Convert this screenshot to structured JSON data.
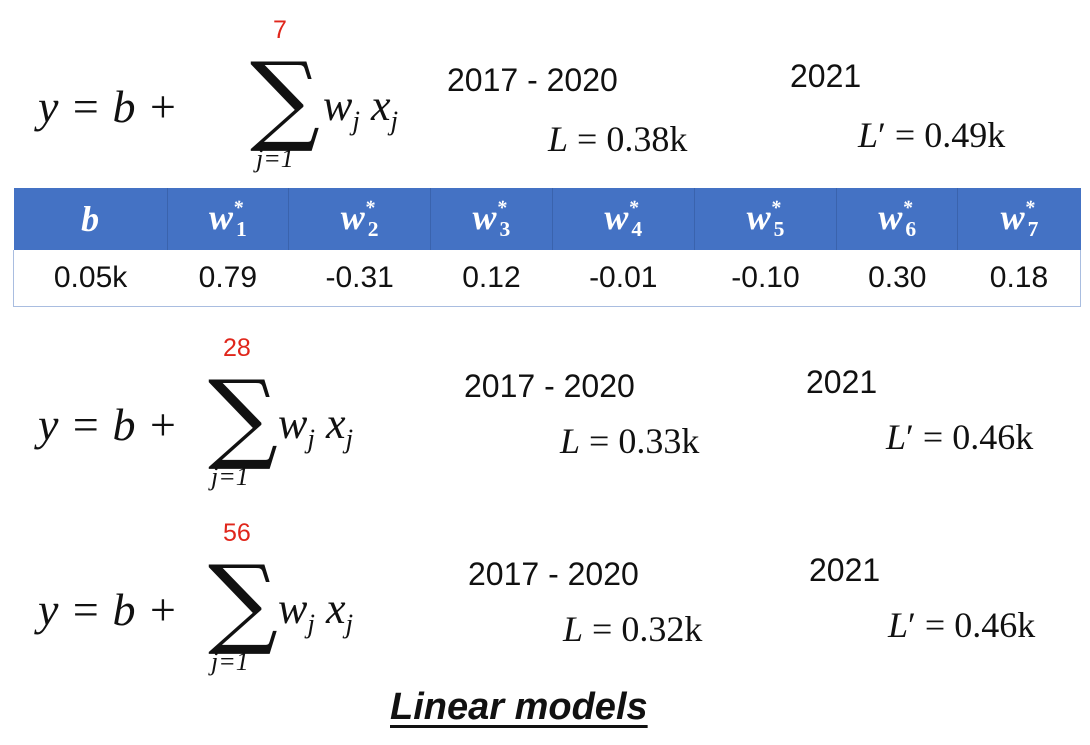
{
  "formula": {
    "lhs": "y = b + ",
    "sigma": "∑",
    "lower_index": "j=1",
    "term_w": "w",
    "term_x": " x",
    "sub_j": "j"
  },
  "models": [
    {
      "upper": "7",
      "years_train": "2017 - 2020",
      "loss_train": "0.38k",
      "year_test": "2021",
      "loss_test": "0.49k"
    },
    {
      "upper": "28",
      "years_train": "2017 - 2020",
      "loss_train": "0.33k",
      "year_test": "2021",
      "loss_test": "0.46k"
    },
    {
      "upper": "56",
      "years_train": "2017 - 2020",
      "loss_train": "0.32k",
      "year_test": "2021",
      "loss_test": "0.46k"
    }
  ],
  "loss_labels": {
    "train": "L",
    "test": "L",
    "prime": "′",
    "eq": " = "
  },
  "table": {
    "headers": [
      {
        "base": "b",
        "sup": "",
        "sub": ""
      },
      {
        "base": "w",
        "sup": "*",
        "sub": "1"
      },
      {
        "base": "w",
        "sup": "*",
        "sub": "2"
      },
      {
        "base": "w",
        "sup": "*",
        "sub": "3"
      },
      {
        "base": "w",
        "sup": "*",
        "sub": "4"
      },
      {
        "base": "w",
        "sup": "*",
        "sub": "5"
      },
      {
        "base": "w",
        "sup": "*",
        "sub": "6"
      },
      {
        "base": "w",
        "sup": "*",
        "sub": "7"
      }
    ],
    "values": [
      "0.05k",
      "0.79",
      "-0.31",
      "0.12",
      "-0.01",
      "-0.10",
      "0.30",
      "0.18"
    ],
    "colors": {
      "header_bg": "#4472c4",
      "border": "#a9bde0"
    }
  },
  "caption": "Linear models",
  "accent_color": "#e0261b"
}
